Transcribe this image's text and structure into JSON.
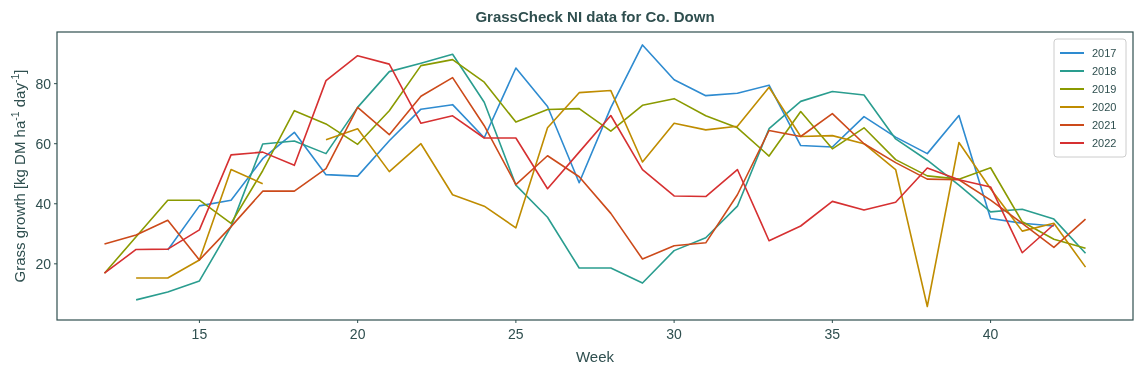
{
  "chart_data": {
    "type": "line",
    "title": "GrassCheck NI data for Co. Down",
    "xlabel": "Week",
    "ylabel": "Grass growth [kg DM ha$^{-1}$ day$^{-1}$]",
    "x": [
      12,
      13,
      14,
      15,
      16,
      17,
      18,
      19,
      20,
      21,
      22,
      23,
      24,
      25,
      26,
      27,
      28,
      29,
      30,
      31,
      32,
      33,
      34,
      35,
      36,
      37,
      38,
      39,
      40,
      41,
      42,
      43
    ],
    "series": [
      {
        "name": "2017",
        "color": "#2e8bd0",
        "values": [
          null,
          null,
          24.6,
          39.3,
          41.2,
          55,
          63.8,
          49.7,
          49.2,
          61,
          71.5,
          73,
          62,
          85.2,
          72.4,
          47,
          72,
          92.9,
          81.3,
          76,
          76.8,
          79.5,
          59.4,
          58.9,
          69,
          62.2,
          56.7,
          69.4,
          35.1,
          33.5,
          32.6,
          null
        ]
      },
      {
        "name": "2018",
        "color": "#2a9d8f",
        "values": [
          null,
          8,
          10.6,
          14.3,
          32.4,
          59.9,
          60.9,
          56.7,
          72.1,
          84,
          86.8,
          89.8,
          73.8,
          46.2,
          35.5,
          18.6,
          18.6,
          13.6,
          24.4,
          28.7,
          39.2,
          65,
          74.1,
          77.4,
          76.2,
          61.6,
          54.5,
          46.2,
          37.3,
          38.2,
          34.9,
          23.5
        ]
      },
      {
        "name": "2019",
        "color": "#8a9a00",
        "values": [
          16.9,
          29,
          41.2,
          41.2,
          33.5,
          51,
          71,
          66.6,
          59.8,
          71,
          86,
          88,
          80.5,
          67.2,
          71.4,
          71.7,
          64.2,
          72.8,
          75,
          69.3,
          65.3,
          55.9,
          70.7,
          58.3,
          65.3,
          54.7,
          49.3,
          48.2,
          52,
          34,
          28.2,
          25.2
        ]
      },
      {
        "name": "2020",
        "color": "#bf8c00",
        "values": [
          null,
          15.3,
          15.3,
          21.3,
          51.4,
          46.7,
          null,
          61.3,
          65,
          50.7,
          60,
          43,
          39.2,
          32,
          65.3,
          77,
          77.7,
          53.9,
          66.8,
          64.6,
          65.8,
          78.8,
          62.4,
          62.7,
          60,
          51.4,
          5.8,
          60.4,
          45,
          30.9,
          33.5,
          18.9
        ]
      },
      {
        "name": "2021",
        "color": "#cc4a1a",
        "values": [
          26.6,
          29.6,
          34.5,
          21.3,
          32.4,
          44.2,
          44.2,
          51.7,
          72.1,
          63,
          75.8,
          82,
          66,
          46.4,
          56,
          49,
          36.8,
          21.6,
          26,
          27,
          43,
          64.4,
          62.4,
          70,
          60,
          53.7,
          48.2,
          48,
          41.2,
          33.5,
          25.5,
          34.9
        ]
      },
      {
        "name": "2022",
        "color": "#d63031",
        "values": [
          16.9,
          24.8,
          24.9,
          31.3,
          56.3,
          57.2,
          52.8,
          81,
          89.3,
          86.5,
          66.8,
          69.3,
          61.9,
          61.9,
          45,
          57.2,
          69.4,
          51.4,
          42.6,
          42.4,
          51.4,
          27.7,
          32.6,
          40.8,
          37.9,
          40.5,
          51.9,
          48,
          45.6,
          23.7,
          33.1,
          null
        ]
      }
    ],
    "xlim": [
      10.5,
      44.5
    ],
    "ylim": [
      1.3,
      97.2
    ],
    "xticks": [
      15,
      20,
      25,
      30,
      35,
      40
    ],
    "yticks": [
      20,
      40,
      60,
      80
    ],
    "grid": false,
    "legend": "top right",
    "marker": "none",
    "line_style": "solid"
  }
}
